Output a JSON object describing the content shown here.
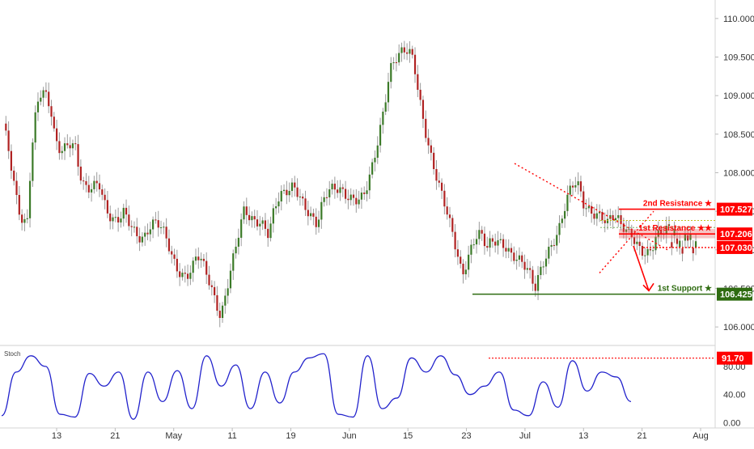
{
  "chart_data": [
    {
      "type": "candlestick",
      "panel": "price",
      "title": "",
      "y_axis_ticks": [
        "106.000",
        "106.500",
        "107.000",
        "107.500",
        "108.000",
        "108.500",
        "109.000",
        "109.500",
        "110.000"
      ],
      "ylim": [
        105.76,
        110.24
      ],
      "x_axis_ticks": [
        "13",
        "21",
        "May",
        "11",
        "19",
        "Jun",
        "15",
        "23",
        "Jul",
        "13",
        "21",
        "Aug"
      ],
      "colors": {
        "up": "#3b7a28",
        "down": "#b02222",
        "wick": "#9a9a9a"
      },
      "price_path": [
        [
          108.6,
          108.2,
          107.2,
          107.4
        ],
        [
          107.4,
          109.3,
          109.2,
          108.8
        ],
        [
          108.8,
          107.9,
          108.5,
          108.3
        ],
        [
          108.3,
          107.6,
          107.9,
          107.8
        ],
        [
          107.8,
          107.3,
          107.4,
          107.5
        ],
        [
          107.5,
          107.2,
          107.0,
          107.3
        ],
        [
          107.3,
          107.5,
          107.2,
          106.9
        ],
        [
          106.9,
          106.7,
          106.5,
          106.9
        ],
        [
          106.9,
          106.9,
          106.5,
          106.1
        ],
        [
          106.1,
          106.5,
          107.2,
          107.6
        ],
        [
          107.6,
          107.2,
          107.4,
          107.2
        ],
        [
          107.2,
          108.0,
          107.6,
          107.8
        ],
        [
          107.8,
          107.7,
          107.5,
          107.3
        ],
        [
          107.3,
          107.8,
          107.9,
          107.8
        ],
        [
          107.8,
          107.6,
          107.5,
          107.8
        ],
        [
          107.8,
          108.2,
          108.5,
          109.3
        ],
        [
          109.3,
          109.6,
          109.8,
          109.4
        ],
        [
          109.4,
          108.6,
          108.3,
          107.9
        ],
        [
          107.9,
          107.5,
          107.1,
          106.7
        ],
        [
          106.7,
          107.0,
          107.4,
          107.0
        ],
        [
          107.0,
          107.3,
          107.1,
          106.9
        ],
        [
          106.9,
          106.8,
          107.0,
          106.5
        ],
        [
          106.5,
          106.8,
          107.0,
          107.3
        ],
        [
          107.3,
          107.7,
          108.1,
          107.6
        ],
        [
          107.6,
          107.5,
          107.5,
          107.3
        ],
        [
          107.3,
          107.6,
          107.3,
          107.2
        ],
        [
          107.2,
          106.9,
          106.8,
          107.2
        ],
        [
          107.2,
          107.3,
          107.2,
          107.3
        ],
        [
          107.3,
          107.0,
          107.2,
          106.9
        ]
      ],
      "annotations": [
        {
          "label": "2nd Resistance ★",
          "price_label": "107.527",
          "value": 107.527,
          "color": "#ff0000"
        },
        {
          "label": "1st Resistance ★★",
          "price_label": "107.206",
          "value": 107.206,
          "color": "#ff0000"
        },
        {
          "label": "",
          "price_label": "107.030",
          "value": 107.03,
          "color": "#ff0000",
          "style": "dotted"
        },
        {
          "label": "1st Support ★",
          "price_label": "106.425",
          "value": 106.425,
          "color": "#2e6b10"
        }
      ]
    },
    {
      "type": "line",
      "panel": "oscillator",
      "title": "Stoch",
      "y_axis_ticks": [
        "0.00",
        "40.00",
        "80.00"
      ],
      "ylim": [
        -4,
        104
      ],
      "level": {
        "label": "91.70",
        "value": 91.7,
        "color": "#ff0000"
      },
      "series": [
        {
          "color": "#2222cc",
          "values": [
            10,
            72,
            95,
            80,
            12,
            8,
            70,
            52,
            72,
            5,
            72,
            30,
            74,
            20,
            95,
            52,
            82,
            20,
            72,
            28,
            72,
            92,
            98,
            12,
            8,
            95,
            20,
            35,
            92,
            72,
            95,
            68,
            40,
            52,
            72,
            18,
            10,
            58,
            22,
            88,
            45,
            72,
            65,
            30
          ]
        }
      ]
    }
  ]
}
